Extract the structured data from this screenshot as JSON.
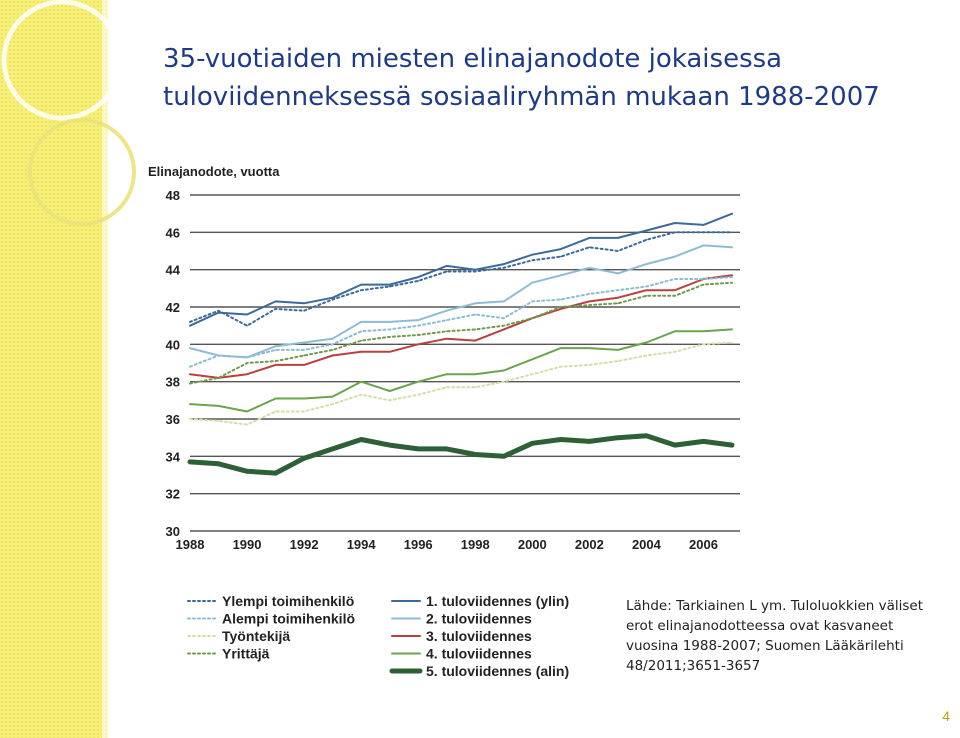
{
  "slide": {
    "title_line1": "35-vuotiaiden miesten elinajanodote jokaisessa",
    "title_line2": "tuloviidenneksessä sosiaaliryhmän mukaan 1988-2007",
    "source_text": "Lähde: Tarkiainen L ym. Tuloluokkien väliset erot elinajanodotteessa ovat kasvaneet vuosina 1988-2007; Suomen Lääkärilehti 48/2011;3651-3657",
    "page_number": "4",
    "band_color": "#f6ef7a",
    "title_color": "#1e3b87"
  },
  "chart_data": {
    "type": "line",
    "ylabel": "Elinajanodote, vuotta",
    "xlabel": "",
    "ylim": [
      30,
      48
    ],
    "xlim": [
      1988,
      2007
    ],
    "yticks": [
      "30",
      "32",
      "34",
      "36",
      "38",
      "40",
      "42",
      "44",
      "46",
      "48"
    ],
    "xticks": [
      "1988",
      "1990",
      "1992",
      "1994",
      "1996",
      "1998",
      "2000",
      "2002",
      "2004",
      "2006"
    ],
    "grid": "horizontal",
    "legend_position": "bottom",
    "x": [
      1988,
      1989,
      1990,
      1991,
      1992,
      1993,
      1994,
      1995,
      1996,
      1997,
      1998,
      1999,
      2000,
      2001,
      2002,
      2003,
      2004,
      2005,
      2006,
      2007
    ],
    "series": [
      {
        "name": "1. tuloviidennes (ylin)",
        "color": "#3c6a9a",
        "dash": "solid",
        "width": 2,
        "values": [
          41.0,
          41.7,
          41.6,
          42.3,
          42.2,
          42.5,
          43.2,
          43.2,
          43.6,
          44.2,
          44.0,
          44.3,
          44.8,
          45.1,
          45.7,
          45.7,
          46.1,
          46.5,
          46.4,
          47.0
        ]
      },
      {
        "name": "2. tuloviidennes",
        "color": "#8cbcd4",
        "dash": "solid",
        "width": 2,
        "values": [
          39.8,
          39.4,
          39.3,
          39.9,
          40.1,
          40.3,
          41.2,
          41.2,
          41.3,
          41.8,
          42.2,
          42.3,
          43.3,
          43.7,
          44.1,
          43.8,
          44.3,
          44.7,
          45.3,
          45.2
        ]
      },
      {
        "name": "3. tuloviidennes",
        "color": "#b8413f",
        "dash": "solid",
        "width": 2,
        "values": [
          38.4,
          38.2,
          38.4,
          38.9,
          38.9,
          39.4,
          39.6,
          39.6,
          40.0,
          40.3,
          40.2,
          40.8,
          41.4,
          41.9,
          42.3,
          42.5,
          42.9,
          42.9,
          43.5,
          43.7
        ]
      },
      {
        "name": "4. tuloviidennes",
        "color": "#6aa44e",
        "dash": "solid",
        "width": 2,
        "values": [
          36.8,
          36.7,
          36.4,
          37.1,
          37.1,
          37.2,
          38.0,
          37.5,
          38.0,
          38.4,
          38.4,
          38.6,
          39.2,
          39.8,
          39.8,
          39.7,
          40.1,
          40.7,
          40.7,
          40.8
        ]
      },
      {
        "name": "5. tuloviidennes (alin)",
        "color": "#2d6135",
        "dash": "solid",
        "width": 5,
        "values": [
          33.7,
          33.6,
          33.2,
          33.1,
          33.9,
          34.4,
          34.9,
          34.6,
          34.4,
          34.4,
          34.1,
          34.0,
          34.7,
          34.9,
          34.8,
          35.0,
          35.1,
          34.6,
          34.8,
          34.6
        ]
      },
      {
        "name": "Ylempi toimihenkilö",
        "color": "#3c6a9a",
        "dash": "dotted",
        "width": 2,
        "values": [
          41.2,
          41.8,
          41.0,
          41.9,
          41.8,
          42.4,
          42.9,
          43.1,
          43.4,
          43.9,
          43.9,
          44.1,
          44.5,
          44.7,
          45.2,
          45.0,
          45.6,
          46.0,
          46.0,
          46.0
        ]
      },
      {
        "name": "Alempi toimihenkilö",
        "color": "#8cbcd4",
        "dash": "dotted",
        "width": 2,
        "values": [
          38.8,
          39.4,
          39.3,
          39.7,
          39.7,
          40.0,
          40.7,
          40.8,
          41.0,
          41.3,
          41.6,
          41.4,
          42.3,
          42.4,
          42.7,
          42.9,
          43.1,
          43.5,
          43.5,
          43.6
        ]
      },
      {
        "name": "Työntekijä",
        "color": "#cfe0a8",
        "dash": "dotted",
        "width": 2,
        "values": [
          36.0,
          35.9,
          35.7,
          36.4,
          36.4,
          36.8,
          37.3,
          37.0,
          37.3,
          37.7,
          37.7,
          38.0,
          38.4,
          38.8,
          38.9,
          39.1,
          39.4,
          39.6,
          40.0,
          40.1
        ]
      },
      {
        "name": "Yrittäjä",
        "color": "#6e9b4a",
        "dash": "dotted",
        "width": 2,
        "values": [
          37.9,
          38.2,
          39.0,
          39.1,
          39.4,
          39.7,
          40.2,
          40.4,
          40.5,
          40.7,
          40.8,
          41.0,
          41.4,
          42.0,
          42.1,
          42.2,
          42.6,
          42.6,
          43.2,
          43.3
        ]
      }
    ]
  }
}
